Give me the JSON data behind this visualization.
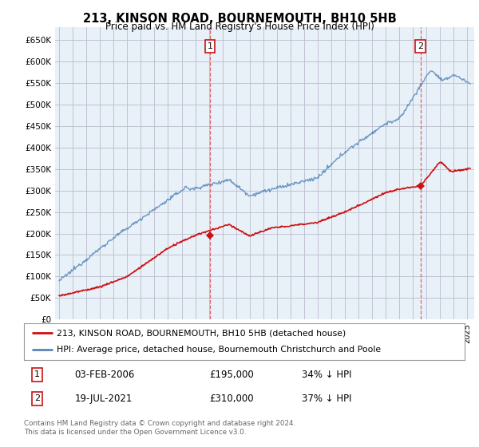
{
  "title": "213, KINSON ROAD, BOURNEMOUTH, BH10 5HB",
  "subtitle": "Price paid vs. HM Land Registry's House Price Index (HPI)",
  "ylabel_ticks": [
    "£0",
    "£50K",
    "£100K",
    "£150K",
    "£200K",
    "£250K",
    "£300K",
    "£350K",
    "£400K",
    "£450K",
    "£500K",
    "£550K",
    "£600K",
    "£650K"
  ],
  "ytick_values": [
    0,
    50000,
    100000,
    150000,
    200000,
    250000,
    300000,
    350000,
    400000,
    450000,
    500000,
    550000,
    600000,
    650000
  ],
  "ylim": [
    0,
    680000
  ],
  "xlim_start": 1994.7,
  "xlim_end": 2025.5,
  "hpi_color": "#5588bb",
  "price_color": "#cc1111",
  "chart_bg_color": "#e8f0f8",
  "marker1_date": 2006.09,
  "marker1_price": 195000,
  "marker1_label": "1",
  "marker2_date": 2021.55,
  "marker2_price": 310000,
  "marker2_label": "2",
  "legend_line1": "213, KINSON ROAD, BOURNEMOUTH, BH10 5HB (detached house)",
  "legend_line2": "HPI: Average price, detached house, Bournemouth Christchurch and Poole",
  "table_row1": [
    "1",
    "03-FEB-2006",
    "£195,000",
    "34% ↓ HPI"
  ],
  "table_row2": [
    "2",
    "19-JUL-2021",
    "£310,000",
    "37% ↓ HPI"
  ],
  "footer": "Contains HM Land Registry data © Crown copyright and database right 2024.\nThis data is licensed under the Open Government Licence v3.0.",
  "bg_color": "#ffffff",
  "grid_color": "#cccccc"
}
